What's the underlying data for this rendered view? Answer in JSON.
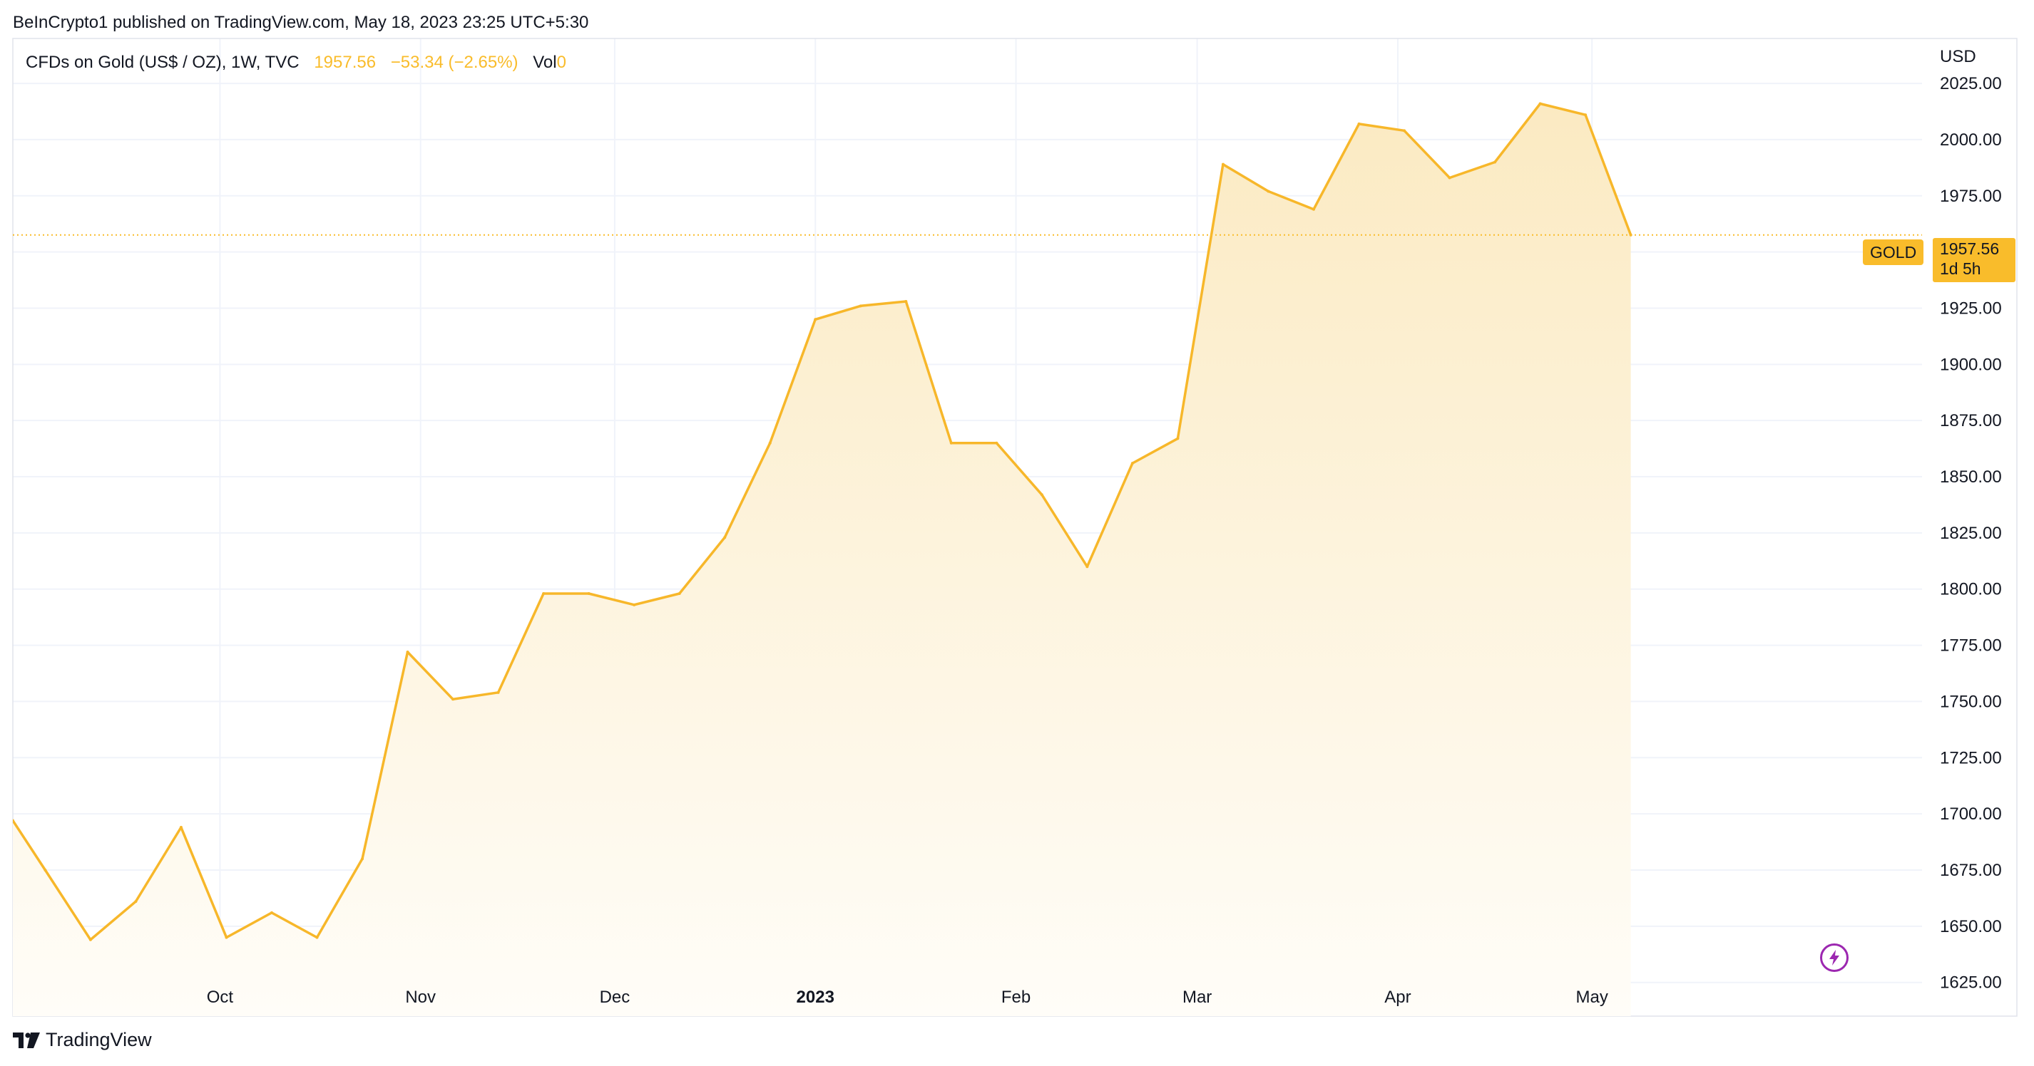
{
  "publish_line": "BeInCrypto1 published on TradingView.com, May 18, 2023 23:25 UTC+5:30",
  "legend": {
    "symbol": "CFDs on Gold (US$ / OZ), 1W, TVC",
    "price": "1957.56",
    "change": "−53.34 (−2.65%)",
    "volume_label": "Vol",
    "volume_value": "0"
  },
  "currency": "USD",
  "gold_tag": "GOLD",
  "price_tag": {
    "price": "1957.56",
    "countdown": "1d 5h"
  },
  "brand": "TradingView",
  "colors": {
    "line": "#f7b72a",
    "fill_top": "#fbeac2",
    "fill_bottom": "#fffdf8",
    "accent": "#f9bc2b",
    "grid": "#f0f3fa",
    "bolt": "#9c27b0"
  },
  "icons": {
    "logo": "tradingview-logo-icon",
    "bolt": "lightning-bolt-icon"
  },
  "chart_data": {
    "type": "area",
    "title": "CFDs on Gold (US$ / OZ), 1W, TVC",
    "ylabel": "USD",
    "ylim": [
      1610,
      2045
    ],
    "grid": true,
    "y_ticks": [
      "1625.00",
      "1650.00",
      "1675.00",
      "1700.00",
      "1725.00",
      "1750.00",
      "1775.00",
      "1800.00",
      "1825.00",
      "1850.00",
      "1875.00",
      "1900.00",
      "1925.00",
      "1950.00",
      "1975.00",
      "2000.00",
      "2025.00"
    ],
    "x_ticks": [
      {
        "label": "Oct",
        "date": "2022-10-01",
        "bold": false
      },
      {
        "label": "Nov",
        "date": "2022-11-01",
        "bold": false
      },
      {
        "label": "Dec",
        "date": "2022-12-01",
        "bold": false
      },
      {
        "label": "2023",
        "date": "2023-01-01",
        "bold": true
      },
      {
        "label": "Feb",
        "date": "2023-02-01",
        "bold": false
      },
      {
        "label": "Mar",
        "date": "2023-03-01",
        "bold": false
      },
      {
        "label": "Apr",
        "date": "2023-04-01",
        "bold": false
      },
      {
        "label": "May",
        "date": "2023-05-01",
        "bold": false
      }
    ],
    "x_range": [
      "2022-08-30",
      "2023-06-21"
    ],
    "last_price": 1957.56,
    "series": [
      {
        "values": [
          [
            "2022-08-30",
            1697
          ],
          [
            "2022-09-04",
            1675
          ],
          [
            "2022-09-11",
            1644
          ],
          [
            "2022-09-18",
            1661
          ],
          [
            "2022-09-25",
            1694
          ],
          [
            "2022-10-02",
            1645
          ],
          [
            "2022-10-09",
            1656
          ],
          [
            "2022-10-16",
            1645
          ],
          [
            "2022-10-23",
            1680
          ],
          [
            "2022-10-30",
            1772
          ],
          [
            "2022-11-06",
            1751
          ],
          [
            "2022-11-13",
            1754
          ],
          [
            "2022-11-20",
            1798
          ],
          [
            "2022-11-27",
            1798
          ],
          [
            "2022-12-04",
            1793
          ],
          [
            "2022-12-11",
            1798
          ],
          [
            "2022-12-18",
            1823
          ],
          [
            "2022-12-25",
            1865
          ],
          [
            "2023-01-01",
            1920
          ],
          [
            "2023-01-08",
            1926
          ],
          [
            "2023-01-15",
            1928
          ],
          [
            "2023-01-22",
            1865
          ],
          [
            "2023-01-29",
            1865
          ],
          [
            "2023-02-05",
            1842
          ],
          [
            "2023-02-12",
            1810
          ],
          [
            "2023-02-19",
            1856
          ],
          [
            "2023-02-26",
            1867
          ],
          [
            "2023-03-05",
            1989
          ],
          [
            "2023-03-12",
            1977
          ],
          [
            "2023-03-19",
            1969
          ],
          [
            "2023-03-26",
            2007
          ],
          [
            "2023-04-02",
            2004
          ],
          [
            "2023-04-09",
            1983
          ],
          [
            "2023-04-16",
            1990
          ],
          [
            "2023-04-23",
            2016
          ],
          [
            "2023-04-30",
            2011
          ],
          [
            "2023-05-07",
            1957.56
          ]
        ]
      }
    ]
  }
}
